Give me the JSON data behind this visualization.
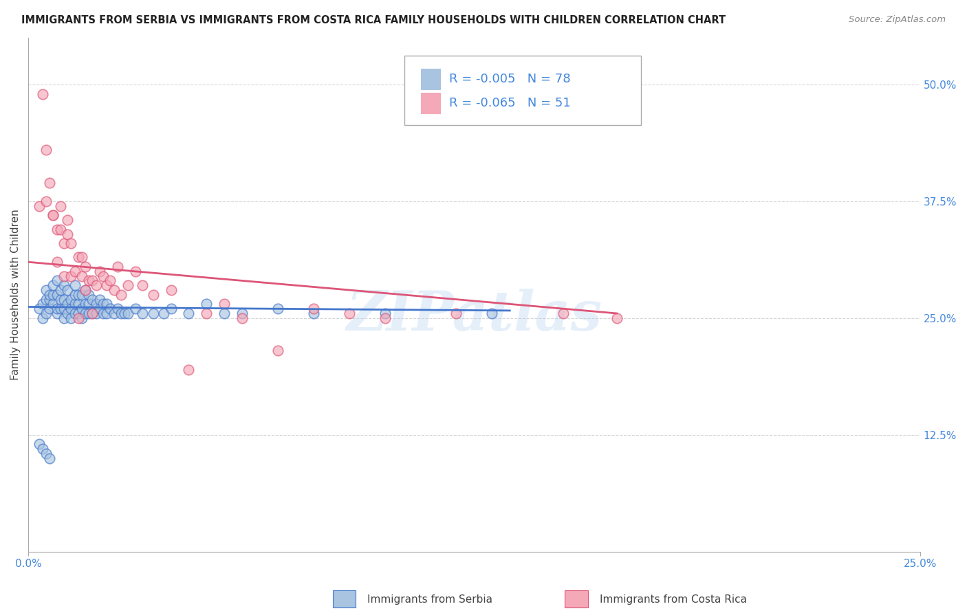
{
  "title": "IMMIGRANTS FROM SERBIA VS IMMIGRANTS FROM COSTA RICA FAMILY HOUSEHOLDS WITH CHILDREN CORRELATION CHART",
  "source": "Source: ZipAtlas.com",
  "ylabel": "Family Households with Children",
  "xlim": [
    0.0,
    0.25
  ],
  "ylim": [
    0.0,
    0.55
  ],
  "xtick_labels": [
    "0.0%",
    "25.0%"
  ],
  "ytick_labels": [
    "12.5%",
    "25.0%",
    "37.5%",
    "50.0%"
  ],
  "ytick_values": [
    0.125,
    0.25,
    0.375,
    0.5
  ],
  "legend_r_serbia": "-0.005",
  "legend_n_serbia": "78",
  "legend_r_costarica": "-0.065",
  "legend_n_costarica": "51",
  "color_serbia": "#a8c4e0",
  "color_costarica": "#f4a8b8",
  "line_color_serbia": "#4477cc",
  "line_color_costarica": "#dd5577",
  "background_color": "#ffffff",
  "grid_color": "#cccccc",
  "watermark": "ZIPatlas",
  "serbia_scatter_x": [
    0.003,
    0.004,
    0.004,
    0.005,
    0.005,
    0.005,
    0.006,
    0.006,
    0.006,
    0.007,
    0.007,
    0.007,
    0.008,
    0.008,
    0.008,
    0.008,
    0.009,
    0.009,
    0.009,
    0.01,
    0.01,
    0.01,
    0.01,
    0.011,
    0.011,
    0.011,
    0.012,
    0.012,
    0.012,
    0.013,
    0.013,
    0.013,
    0.013,
    0.014,
    0.014,
    0.014,
    0.015,
    0.015,
    0.015,
    0.016,
    0.016,
    0.016,
    0.017,
    0.017,
    0.017,
    0.018,
    0.018,
    0.019,
    0.019,
    0.02,
    0.02,
    0.021,
    0.021,
    0.022,
    0.022,
    0.023,
    0.024,
    0.025,
    0.026,
    0.027,
    0.028,
    0.03,
    0.032,
    0.035,
    0.038,
    0.04,
    0.045,
    0.05,
    0.055,
    0.06,
    0.07,
    0.08,
    0.1,
    0.13,
    0.003,
    0.004,
    0.005,
    0.006
  ],
  "serbia_scatter_y": [
    0.26,
    0.25,
    0.265,
    0.255,
    0.27,
    0.28,
    0.26,
    0.27,
    0.275,
    0.265,
    0.275,
    0.285,
    0.255,
    0.26,
    0.275,
    0.29,
    0.26,
    0.27,
    0.28,
    0.25,
    0.26,
    0.27,
    0.285,
    0.255,
    0.265,
    0.28,
    0.25,
    0.26,
    0.27,
    0.255,
    0.265,
    0.275,
    0.285,
    0.255,
    0.265,
    0.275,
    0.25,
    0.26,
    0.275,
    0.255,
    0.265,
    0.28,
    0.255,
    0.265,
    0.275,
    0.255,
    0.27,
    0.255,
    0.265,
    0.26,
    0.27,
    0.255,
    0.265,
    0.255,
    0.265,
    0.26,
    0.255,
    0.26,
    0.255,
    0.255,
    0.255,
    0.26,
    0.255,
    0.255,
    0.255,
    0.26,
    0.255,
    0.265,
    0.255,
    0.255,
    0.26,
    0.255,
    0.255,
    0.255,
    0.115,
    0.11,
    0.105,
    0.1
  ],
  "costarica_scatter_x": [
    0.004,
    0.005,
    0.006,
    0.007,
    0.008,
    0.008,
    0.009,
    0.01,
    0.01,
    0.011,
    0.012,
    0.012,
    0.013,
    0.014,
    0.015,
    0.015,
    0.016,
    0.016,
    0.017,
    0.018,
    0.019,
    0.02,
    0.021,
    0.022,
    0.023,
    0.024,
    0.026,
    0.028,
    0.03,
    0.032,
    0.035,
    0.04,
    0.045,
    0.05,
    0.055,
    0.06,
    0.07,
    0.08,
    0.09,
    0.1,
    0.12,
    0.15,
    0.165,
    0.003,
    0.005,
    0.007,
    0.009,
    0.011,
    0.014,
    0.018,
    0.025
  ],
  "costarica_scatter_y": [
    0.49,
    0.43,
    0.395,
    0.36,
    0.345,
    0.31,
    0.345,
    0.33,
    0.295,
    0.34,
    0.33,
    0.295,
    0.3,
    0.315,
    0.315,
    0.295,
    0.305,
    0.28,
    0.29,
    0.29,
    0.285,
    0.3,
    0.295,
    0.285,
    0.29,
    0.28,
    0.275,
    0.285,
    0.3,
    0.285,
    0.275,
    0.28,
    0.195,
    0.255,
    0.265,
    0.25,
    0.215,
    0.26,
    0.255,
    0.25,
    0.255,
    0.255,
    0.25,
    0.37,
    0.375,
    0.36,
    0.37,
    0.355,
    0.25,
    0.255,
    0.305
  ],
  "serbia_line_x0": 0.0,
  "serbia_line_y0": 0.262,
  "serbia_line_x1": 0.135,
  "serbia_line_y1": 0.258,
  "costarica_line_x0": 0.0,
  "costarica_line_y0": 0.31,
  "costarica_line_x1": 0.165,
  "costarica_line_y1": 0.255
}
